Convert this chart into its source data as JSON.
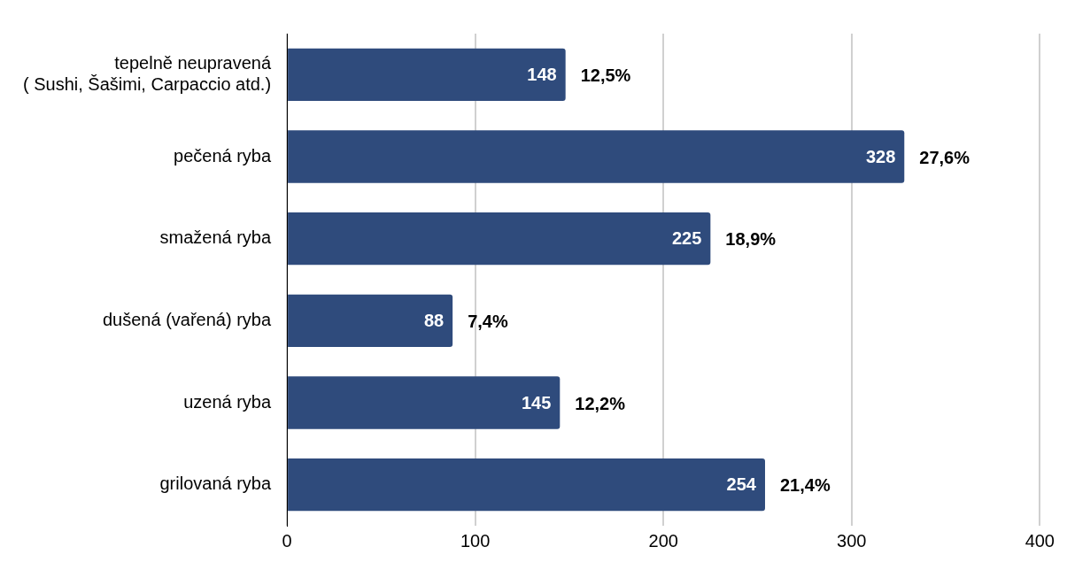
{
  "chart_data": {
    "type": "bar",
    "orientation": "horizontal",
    "categories": [
      "tepelně neupravená\n( Sushi, Šašimi, Carpaccio atd.)",
      "pečená ryba",
      "smažená ryba",
      "dušená (vařená) ryba",
      "uzená ryba",
      "grilovaná ryba"
    ],
    "values": [
      148,
      328,
      225,
      88,
      145,
      254
    ],
    "annotations": [
      {
        "text": "12,5%",
        "x": 148,
        "y": "tepelně neupravená\n( Sushi, Šašimi, Carpaccio atd.)"
      },
      {
        "text": "27,6%",
        "x": 328,
        "y": "pečená ryba"
      },
      {
        "text": "18,9%",
        "x": 225,
        "y": "smažená ryba"
      },
      {
        "text": "7,4%",
        "x": 88,
        "y": "dušená (vařená) ryba"
      },
      {
        "text": "12,2%",
        "x": 145,
        "y": "uzená ryba"
      },
      {
        "text": "21,4%",
        "x": 254,
        "y": "grilovaná ryba"
      }
    ],
    "data_labels": true,
    "color": "#2f4b7c",
    "xlim": [
      0,
      400
    ],
    "xticks": [
      0,
      100,
      200,
      300,
      400
    ],
    "grid": "x",
    "legend": false
  }
}
